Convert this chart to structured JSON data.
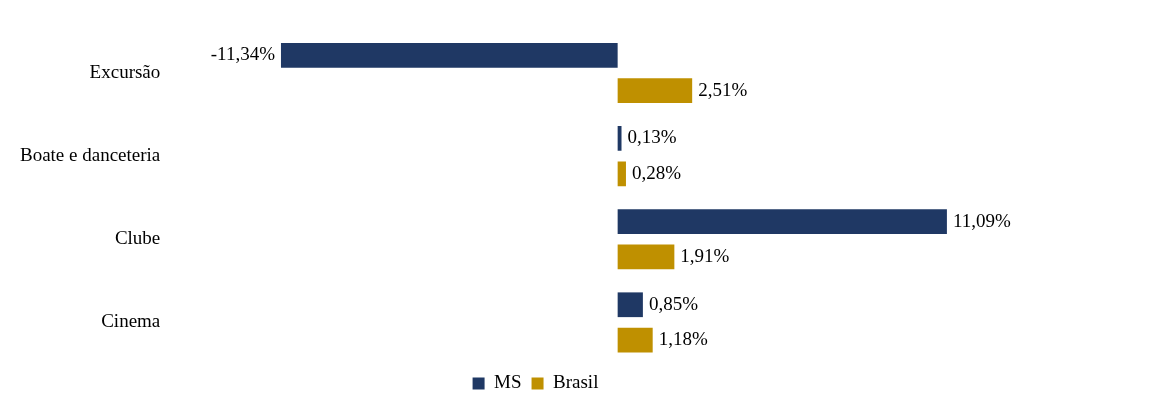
{
  "chart_data": {
    "type": "bar",
    "orientation": "horizontal",
    "categories": [
      "Excursão",
      "Boate e danceteria",
      "Clube",
      "Cinema"
    ],
    "series": [
      {
        "name": "MS",
        "color": "#1f3864",
        "values": [
          -11.34,
          0.13,
          11.09,
          0.85
        ],
        "value_labels": [
          "-11,34%",
          "0,13%",
          "11,09%",
          "0,85%"
        ]
      },
      {
        "name": "Brasil",
        "color": "#bf9000",
        "values": [
          2.51,
          0.28,
          1.91,
          1.18
        ],
        "value_labels": [
          "2,51%",
          "0,28%",
          "1,91%",
          "1,18%"
        ]
      }
    ],
    "legend": "bottom",
    "grid": false
  }
}
